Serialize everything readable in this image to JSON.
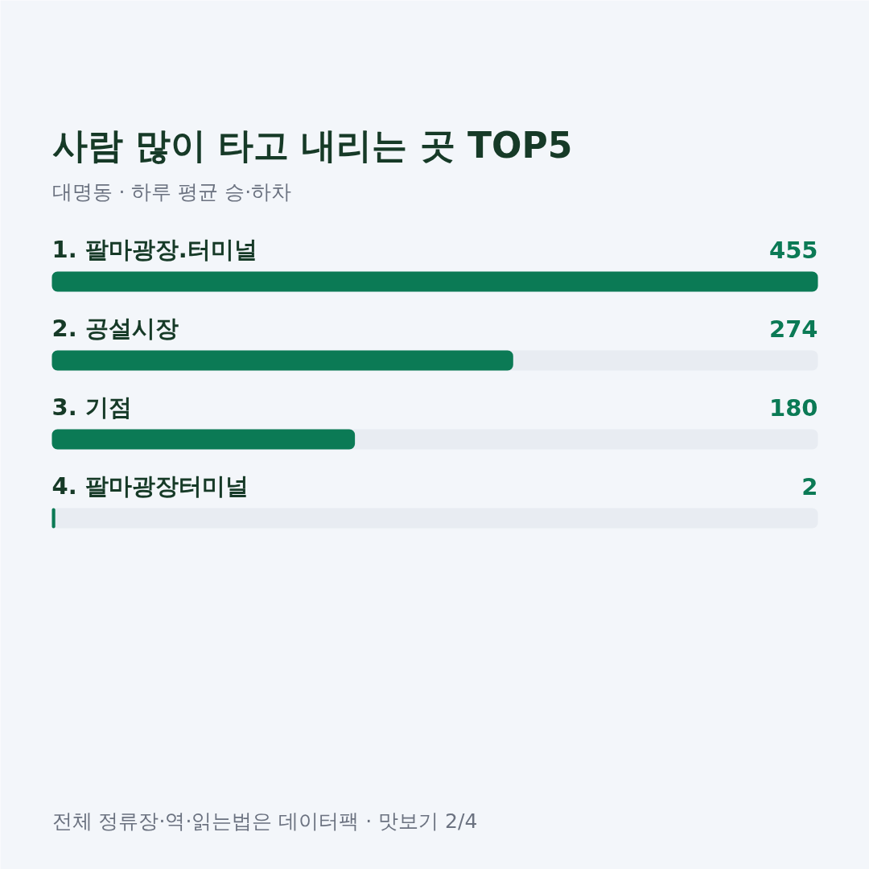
{
  "chart_data": {
    "type": "bar",
    "orientation": "horizontal",
    "title": "사람 많이 타고 내리는 곳 TOP5",
    "subtitle": "대명동 · 하루 평균 승·하차",
    "categories": [
      "1. 팔마광장.터미널",
      "2. 공설시장",
      "3. 기점",
      "4. 팔마광장터미널"
    ],
    "values": [
      455,
      274,
      180,
      2
    ],
    "color": "#0b7a55",
    "xlim": [
      0,
      455
    ],
    "data_labels": true,
    "tick_labels": false,
    "grid": false,
    "annotations": [
      "전체 정류장·역·읽는법은 데이터팩 · 맛보기 2/4"
    ]
  }
}
